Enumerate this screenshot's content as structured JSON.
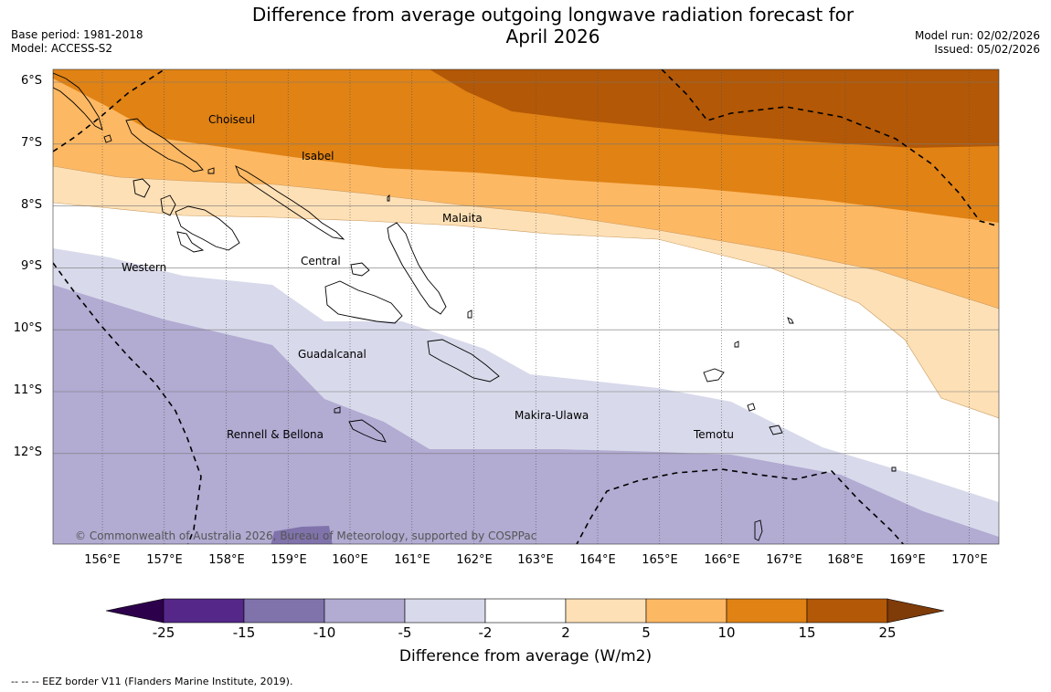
{
  "title": {
    "line1": "Difference from average outgoing longwave radiation forecast for",
    "line2": "April 2026"
  },
  "meta": {
    "base_period": "Base period: 1981-2018",
    "model": "Model: ACCESS-S2",
    "model_run": "Model run: 02/02/2026",
    "issued": "Issued: 05/02/2026"
  },
  "map": {
    "lat_labels": [
      "6°S",
      "7°S",
      "8°S",
      "9°S",
      "10°S",
      "11°S",
      "12°S"
    ],
    "lon_labels": [
      "156°E",
      "157°E",
      "158°E",
      "159°E",
      "160°E",
      "161°E",
      "162°E",
      "163°E",
      "164°E",
      "165°E",
      "166°E",
      "167°E",
      "168°E",
      "169°E",
      "170°E"
    ],
    "places": [
      "Choiseul",
      "Isabel",
      "Malaita",
      "Western",
      "Central",
      "Guadalcanal",
      "Makira-Ulawa",
      "Rennell & Bellona",
      "Temotu"
    ],
    "copyright": "© Commonwealth of Australia 2026, Bureau of Meteorology, supported by COSPPac"
  },
  "colorbar": {
    "ticks": [
      "-25",
      "-15",
      "-10",
      "-5",
      "-2",
      "2",
      "5",
      "10",
      "15",
      "25"
    ],
    "colors": [
      "#542788",
      "#8073ac",
      "#b2abd2",
      "#d8daeb",
      "#ffffff",
      "#fee0b6",
      "#fdb863",
      "#e08214",
      "#b35806",
      "#7f3b08"
    ],
    "label": "Difference from average (W/m2)"
  },
  "footnote": "--  --  -- EEZ border V11 (Flanders Marine Institute, 2019)."
}
